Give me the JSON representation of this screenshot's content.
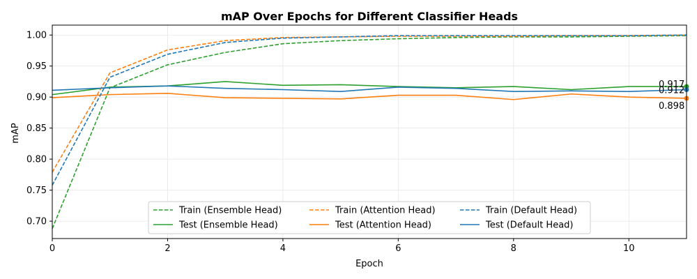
{
  "chart_data": {
    "type": "line",
    "title": "mAP Over Epochs for Different Classifier Heads",
    "xlabel": "Epoch",
    "ylabel": "mAP",
    "xlim": [
      0,
      11
    ],
    "ylim": [
      0.672,
      1.016
    ],
    "xticks": [
      0,
      2,
      4,
      6,
      8,
      10
    ],
    "yticks": [
      0.7,
      0.75,
      0.8,
      0.85,
      0.9,
      0.95,
      1.0
    ],
    "grid": true,
    "legend_position": "lower center",
    "legend_columns": 3,
    "x": [
      0,
      1,
      2,
      3,
      4,
      5,
      6,
      7,
      8,
      9,
      10,
      11
    ],
    "series": [
      {
        "name": "Train (Ensemble Head)",
        "style": "dashed",
        "color": "#2ca02c",
        "values": [
          0.688,
          0.915,
          0.952,
          0.972,
          0.986,
          0.991,
          0.994,
          0.996,
          0.997,
          0.997,
          0.998,
          0.999
        ]
      },
      {
        "name": "Test (Ensemble Head)",
        "style": "solid",
        "color": "#2ca02c",
        "values": [
          0.904,
          0.916,
          0.918,
          0.925,
          0.919,
          0.92,
          0.917,
          0.915,
          0.917,
          0.912,
          0.917,
          0.917
        ]
      },
      {
        "name": "Train (Attention Head)",
        "style": "dashed",
        "color": "#ff7f0e",
        "values": [
          0.779,
          0.939,
          0.976,
          0.991,
          0.996,
          0.997,
          0.998,
          0.998,
          0.998,
          0.999,
          0.999,
          1.0
        ]
      },
      {
        "name": "Test (Attention Head)",
        "style": "solid",
        "color": "#ff7f0e",
        "values": [
          0.899,
          0.904,
          0.906,
          0.899,
          0.898,
          0.897,
          0.903,
          0.903,
          0.896,
          0.905,
          0.9,
          0.898
        ]
      },
      {
        "name": "Train (Default Head)",
        "style": "dashed",
        "color": "#1f77b4",
        "values": [
          0.758,
          0.932,
          0.969,
          0.988,
          0.995,
          0.997,
          0.999,
          0.999,
          0.999,
          0.999,
          0.999,
          1.0
        ]
      },
      {
        "name": "Test (Default Head)",
        "style": "solid",
        "color": "#1f77b4",
        "values": [
          0.911,
          0.915,
          0.918,
          0.914,
          0.912,
          0.909,
          0.916,
          0.914,
          0.909,
          0.91,
          0.909,
          0.912
        ]
      }
    ],
    "end_labels": [
      {
        "series": "Test (Ensemble Head)",
        "text": "0.917",
        "value": 0.917
      },
      {
        "series": "Test (Default Head)",
        "text": "0.912",
        "value": 0.912
      },
      {
        "series": "Test (Attention Head)",
        "text": "0.898",
        "value": 0.898
      }
    ]
  }
}
